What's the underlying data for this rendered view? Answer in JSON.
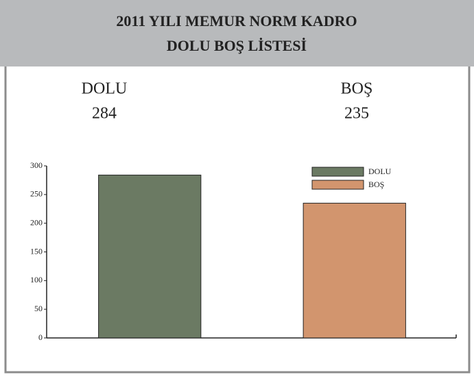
{
  "chart_data": {
    "type": "bar",
    "title_lines": [
      "2011 YILI MEMUR NORM KADRO",
      "DOLU BOŞ LİSTESİ"
    ],
    "series": [
      {
        "name": "DOLU",
        "color": "#6b7a63",
        "values": [
          284
        ]
      },
      {
        "name": "BOŞ",
        "color": "#d2956e",
        "values": [
          235
        ]
      }
    ],
    "ylim": [
      0,
      300
    ],
    "yticks": [
      0,
      50,
      100,
      150,
      200,
      250,
      300
    ],
    "legend": "upper right",
    "grid": false
  }
}
